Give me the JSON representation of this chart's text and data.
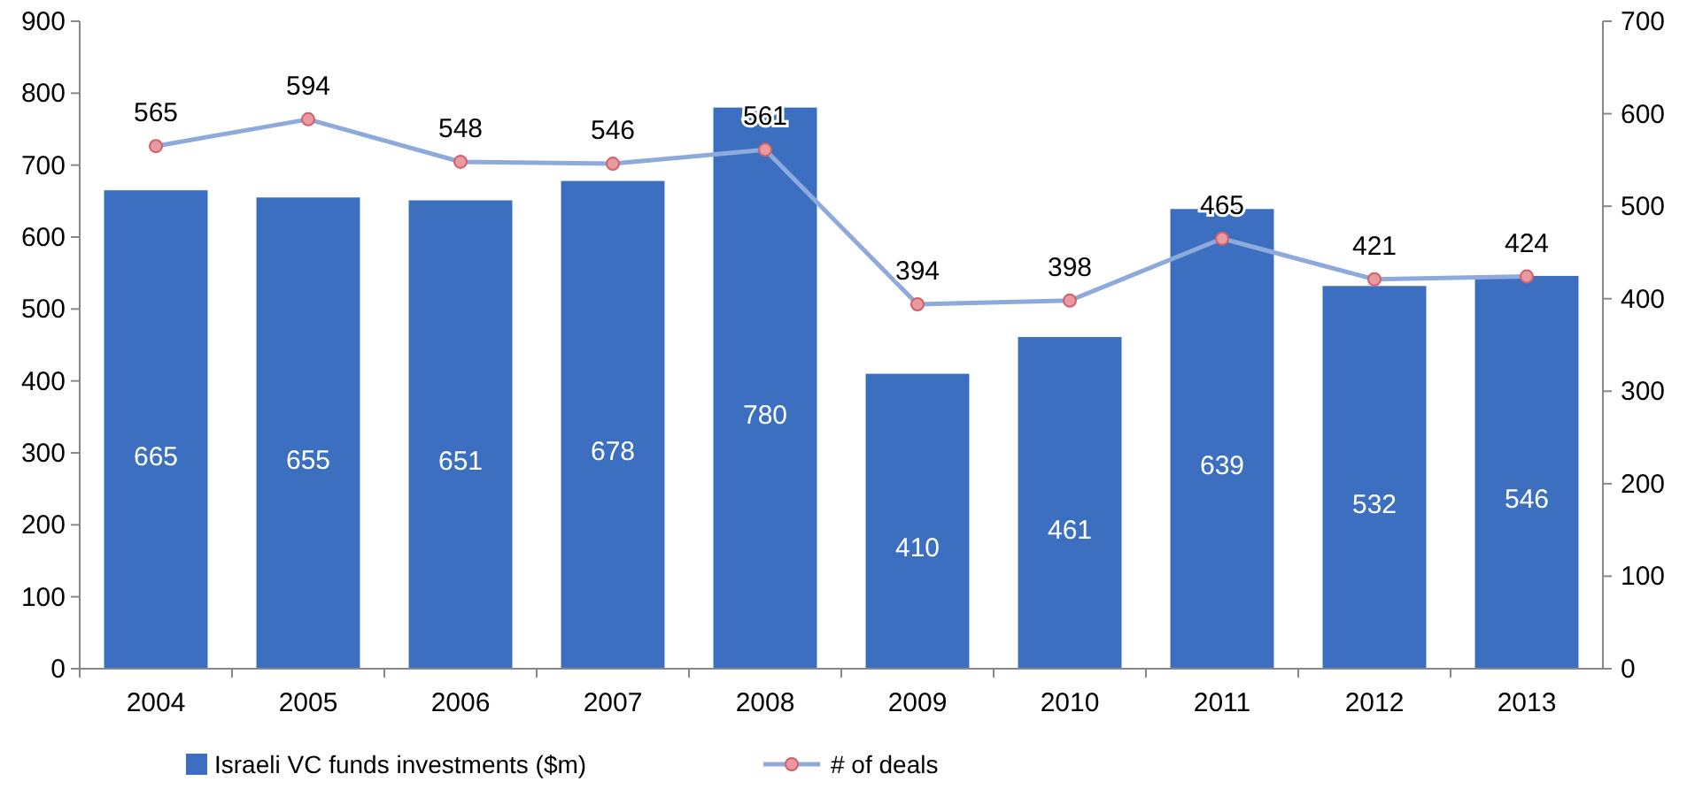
{
  "chart_data": {
    "type": "bar",
    "categories": [
      "2004",
      "2005",
      "2006",
      "2007",
      "2008",
      "2009",
      "2010",
      "2011",
      "2012",
      "2013"
    ],
    "series": [
      {
        "name": "Israeli VC funds investments ($m)",
        "type": "bar",
        "color": "#3d6fc0",
        "values": [
          665,
          655,
          651,
          678,
          780,
          410,
          461,
          639,
          532,
          546
        ]
      },
      {
        "name": "# of deals",
        "type": "line",
        "axis": "y2",
        "color": "#8eaadc",
        "marker": "circle",
        "values": [
          565,
          594,
          548,
          546,
          561,
          394,
          398,
          465,
          421,
          424
        ]
      }
    ],
    "ylim": [
      0,
      900
    ],
    "yticks": [
      0,
      100,
      200,
      300,
      400,
      500,
      600,
      700,
      800,
      900
    ],
    "y2lim": [
      0,
      700
    ],
    "y2ticks": [
      0,
      100,
      200,
      300,
      400,
      500,
      600,
      700
    ],
    "data_labels": true,
    "grid": false,
    "legend": "bottom left"
  }
}
